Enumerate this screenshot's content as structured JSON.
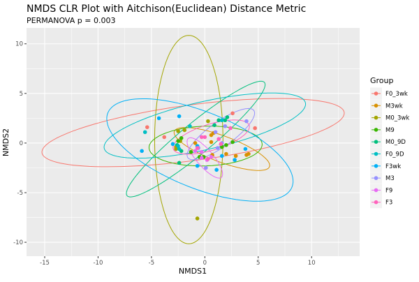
{
  "chart_data": {
    "type": "scatter",
    "title": "NMDS CLR Plot with Aitchison(Euclidean) Distance Metric",
    "subtitle": "PERMANOVA p = 0.003",
    "xlabel": "NMDS1",
    "ylabel": "NMDS2",
    "xlim": [
      -16.7,
      14.5
    ],
    "ylim": [
      -11.4,
      11.6
    ],
    "xticks": [
      -15,
      -10,
      -5,
      0,
      5,
      10
    ],
    "yticks": [
      -10,
      -5,
      0,
      5,
      10
    ],
    "grid": true,
    "legend_title": "Group",
    "legend_position": "right",
    "series": [
      {
        "name": "F0_3wk",
        "color": "#F8766D",
        "points": [
          [
            -5.4,
            1.6
          ],
          [
            2.6,
            3.0
          ],
          [
            -3.8,
            0.6
          ],
          [
            4.7,
            1.5
          ]
        ],
        "ellipse": {
          "cx": -1.1,
          "cy": 1.05,
          "a": 14.3,
          "b": 2.8,
          "angle": 8.2
        }
      },
      {
        "name": "M3wk",
        "color": "#D89000",
        "points": [
          [
            -0.9,
            0.0
          ],
          [
            0.6,
            0.8
          ],
          [
            0.8,
            1.0
          ],
          [
            0.6,
            0.1
          ],
          [
            2.0,
            -1.1
          ],
          [
            2.9,
            -1.3
          ],
          [
            3.9,
            -1.2
          ],
          [
            4.1,
            -1.1
          ],
          [
            0.7,
            -1.2
          ],
          [
            -2.7,
            -0.4
          ]
        ],
        "ellipse": {
          "cx": 1.6,
          "cy": -0.6,
          "a": 4.8,
          "b": 1.3,
          "angle": -22
        }
      },
      {
        "name": "M0_3wk",
        "color": "#A3A500",
        "points": [
          [
            -0.7,
            -7.6
          ],
          [
            0.3,
            2.2
          ],
          [
            -1.9,
            1.3
          ],
          [
            -2.5,
            1.2
          ],
          [
            -2.7,
            -0.6
          ],
          [
            -2.3,
            0.2
          ]
        ],
        "ellipse": {
          "cx": -1.5,
          "cy": 0.35,
          "a": 10.5,
          "b": 3.2,
          "angle": 90
        }
      },
      {
        "name": "M9",
        "color": "#39B600",
        "points": [
          [
            -1.3,
            -0.9
          ],
          [
            -0.1,
            -1.4
          ],
          [
            -0.5,
            -1.4
          ],
          [
            1.6,
            -0.4
          ],
          [
            2.0,
            -0.2
          ],
          [
            2.6,
            0.1
          ],
          [
            -2.2,
            0.5
          ],
          [
            -2.5,
            0.2
          ]
        ],
        "ellipse": {
          "cx": 0.07,
          "cy": -0.3,
          "a": 5.3,
          "b": 2.0,
          "angle": 2
        }
      },
      {
        "name": "M0_9D",
        "color": "#00BF7D",
        "points": [
          [
            0.9,
            1.8
          ],
          [
            1.3,
            2.3
          ],
          [
            1.9,
            2.3
          ],
          [
            2.1,
            2.6
          ],
          [
            -2.4,
            -2.0
          ],
          [
            -2.2,
            -0.8
          ],
          [
            -2.6,
            -0.2
          ]
        ],
        "ellipse": {
          "cx": -0.85,
          "cy": 0.4,
          "a": 8.6,
          "b": 1.5,
          "angle": 41.7
        }
      },
      {
        "name": "F0_9D",
        "color": "#00BFC4",
        "points": [
          [
            -5.6,
            1.1
          ],
          [
            -1.4,
            1.7
          ],
          [
            1.6,
            2.3
          ],
          [
            -2.5,
            -0.3
          ],
          [
            -2.4,
            -0.6
          ]
        ],
        "ellipse": {
          "cx": 0.0,
          "cy": 1.76,
          "a": 9.7,
          "b": 2.4,
          "angle": 13.8
        }
      },
      {
        "name": "F3wk",
        "color": "#00B0F6",
        "points": [
          [
            -4.3,
            2.5
          ],
          [
            -2.4,
            2.7
          ],
          [
            -5.9,
            -0.8
          ],
          [
            -3.0,
            -0.1
          ],
          [
            -0.7,
            -2.3
          ],
          [
            1.6,
            -1.3
          ],
          [
            1.1,
            -2.7
          ],
          [
            3.8,
            -0.6
          ],
          [
            2.8,
            -1.7
          ],
          [
            -0.7,
            -0.3
          ]
        ],
        "ellipse": {
          "cx": -0.46,
          "cy": -0.7,
          "a": 9.4,
          "b": 3.8,
          "angle": -24
        }
      },
      {
        "name": "M3",
        "color": "#9590FF",
        "points": [
          [
            1.0,
            1.1
          ],
          [
            1.9,
            1.7
          ],
          [
            3.9,
            2.2
          ],
          [
            1.2,
            -0.5
          ],
          [
            0.1,
            -2.5
          ],
          [
            1.6,
            0.0
          ],
          [
            -0.6,
            -0.5
          ]
        ],
        "ellipse": {
          "cx": 1.5,
          "cy": 0.9,
          "a": 3.9,
          "b": 1.2,
          "angle": 38
        }
      },
      {
        "name": "F9",
        "color": "#E76BF3",
        "points": [
          [
            -0.3,
            -0.9
          ],
          [
            -0.9,
            -0.8
          ],
          [
            0.2,
            -1.7
          ],
          [
            -0.3,
            -1.5
          ],
          [
            0.6,
            -1.4
          ]
        ],
        "ellipse": {
          "cx": 0.0,
          "cy": -1.5,
          "a": 2.5,
          "b": 0.8,
          "angle": -52
        }
      },
      {
        "name": "F3",
        "color": "#FF62BC",
        "points": [
          [
            -0.3,
            0.6
          ],
          [
            0.0,
            0.6
          ],
          [
            1.3,
            0.4
          ],
          [
            1.5,
            -0.1
          ],
          [
            2.4,
            1.5
          ],
          [
            -0.7,
            -0.5
          ],
          [
            0.3,
            -1.6
          ]
        ],
        "ellipse": {
          "cx": 0.6,
          "cy": 0.6,
          "a": 3.75,
          "b": 1.3,
          "angle": 18.7
        }
      }
    ]
  }
}
